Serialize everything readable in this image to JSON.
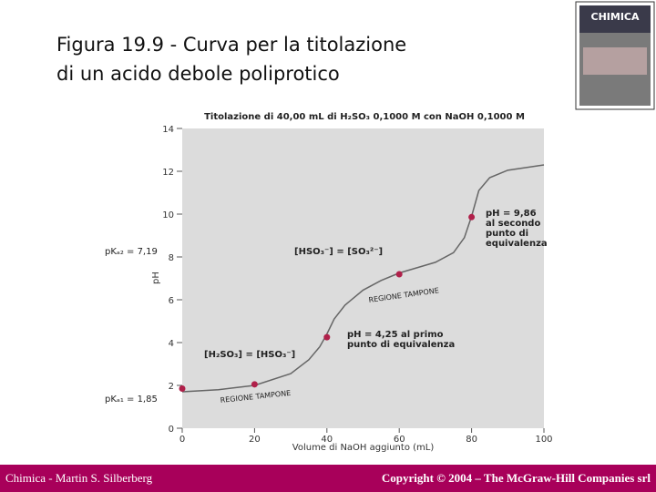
{
  "slide": {
    "title_lines": [
      "Figura 19.9 - Curva per la titolazione",
      "di un acido debole poliprotico"
    ]
  },
  "cover": {
    "title": "CHIMICA"
  },
  "footer": {
    "left": "Chimica - Martin S. Silberberg",
    "right": "Copyright © 2004 – The McGraw-Hill Companies srl"
  },
  "chart_data": {
    "type": "line",
    "title": "Titolazione di 40,00 mL di H₂SO₃ 0,1000 M con NaOH 0,1000 M",
    "xlabel": "Volume di NaOH aggiunto (mL)",
    "ylabel": "pH",
    "x": [
      0,
      5,
      10,
      20,
      30,
      35,
      38,
      40,
      42,
      45,
      50,
      55,
      60,
      65,
      70,
      75,
      78,
      80,
      82,
      85,
      90,
      100
    ],
    "values": [
      1.7,
      1.75,
      1.8,
      2.0,
      2.55,
      3.2,
      3.8,
      4.4,
      5.1,
      5.75,
      6.45,
      6.9,
      7.25,
      7.5,
      7.75,
      8.2,
      8.9,
      9.9,
      11.1,
      11.7,
      12.05,
      12.3
    ],
    "color": "#666666",
    "markers": {
      "x": [
        0,
        20,
        40,
        60,
        80
      ],
      "y": [
        1.85,
        2.05,
        4.25,
        7.19,
        9.86
      ],
      "color": "#b0204a"
    },
    "annotations": [
      [
        "pKₐ₂ = 7,19"
      ],
      [
        "pKₐ₁ = 1,85"
      ],
      [
        "[H₂SO₃] = [HSO₃⁻]"
      ],
      [
        "REGIONE TAMPONE"
      ],
      [
        "pH = 4,25 al primo",
        "punto di equivalenza"
      ],
      [
        "[HSO₃⁻] = [SO₃²⁻]"
      ],
      [
        "REGIONE TAMPONE"
      ],
      [
        "pH = 9,86",
        "al secondo",
        "punto di",
        "equivalenza"
      ]
    ],
    "xlim": [
      0,
      100
    ],
    "xticks": [
      0,
      20,
      40,
      60,
      80,
      100
    ],
    "ylim": [
      0,
      14
    ],
    "yticks": [
      0,
      2,
      4,
      6,
      8,
      10,
      12,
      14
    ],
    "background": "#dcdcdc"
  }
}
